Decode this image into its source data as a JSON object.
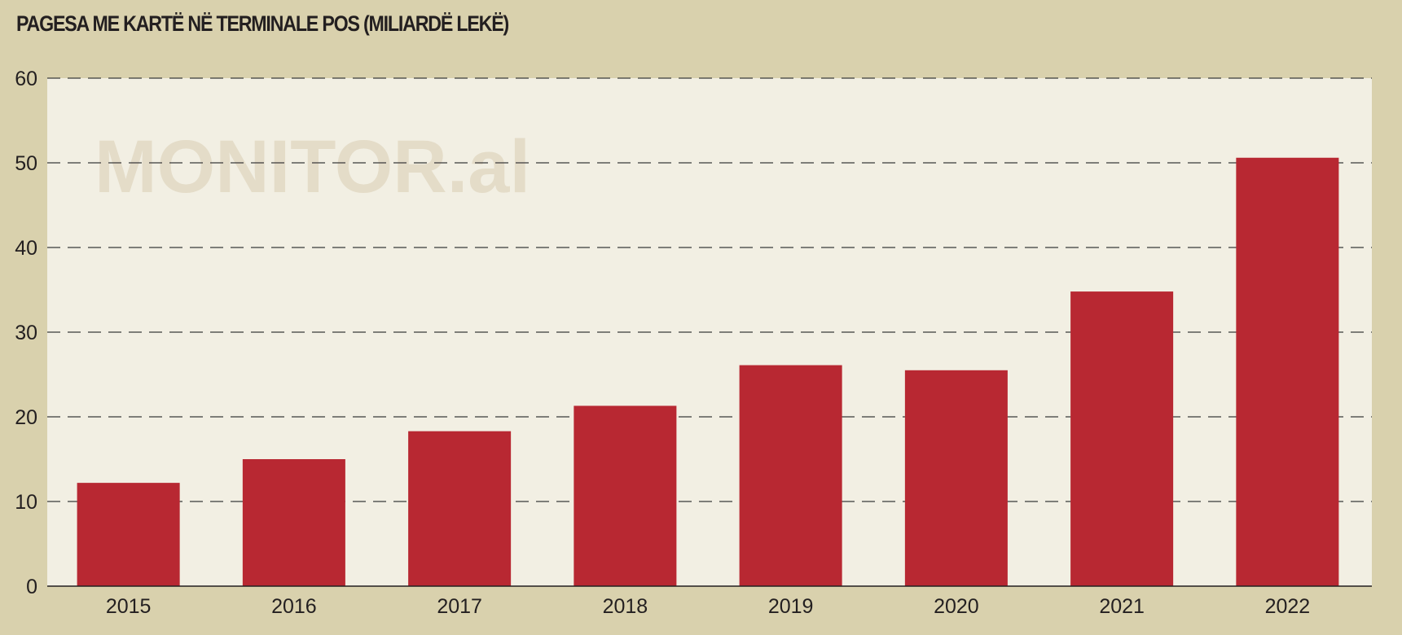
{
  "chart_data": {
    "type": "bar",
    "title": "PAGESA ME KARTË NË TERMINALE POS (MILIARDË LEKË)",
    "watermark": "MONITOR.al",
    "categories": [
      "2015",
      "2016",
      "2017",
      "2018",
      "2019",
      "2020",
      "2021",
      "2022"
    ],
    "values": [
      12.2,
      15.0,
      18.3,
      21.3,
      26.1,
      25.5,
      34.8,
      50.6
    ],
    "ylim": [
      0,
      60
    ],
    "yticks": [
      0,
      10,
      20,
      30,
      40,
      50,
      60
    ],
    "grid": true,
    "legend": "none",
    "colors": {
      "bar": "#b82832",
      "plot_background": "#f2efe3",
      "page_background": "#d9d1ad",
      "gridline": "#3a3a3a",
      "text": "#231f20",
      "watermark": "#e4dcc8"
    }
  }
}
